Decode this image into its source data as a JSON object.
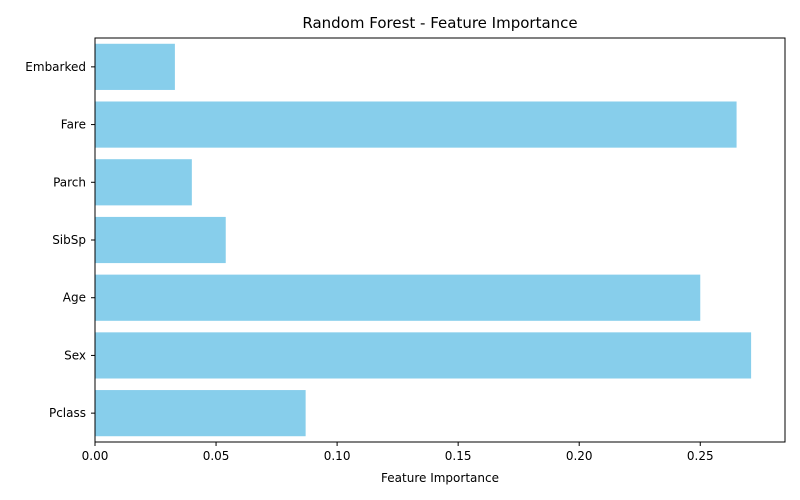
{
  "chart_data": {
    "type": "bar",
    "orientation": "horizontal",
    "title": "Random Forest - Feature Importance",
    "xlabel": "Feature Importance",
    "ylabel": "",
    "categories": [
      "Pclass",
      "Sex",
      "Age",
      "SibSp",
      "Parch",
      "Fare",
      "Embarked"
    ],
    "values": [
      0.087,
      0.271,
      0.25,
      0.054,
      0.04,
      0.265,
      0.033
    ],
    "xlim": [
      0,
      0.285
    ],
    "xticks": [
      0.0,
      0.05,
      0.1,
      0.15,
      0.2,
      0.25
    ],
    "xtick_labels": [
      "0.00",
      "0.05",
      "0.10",
      "0.15",
      "0.20",
      "0.25"
    ],
    "bar_color": "#87ceeb",
    "grid": false,
    "legend": "none"
  }
}
